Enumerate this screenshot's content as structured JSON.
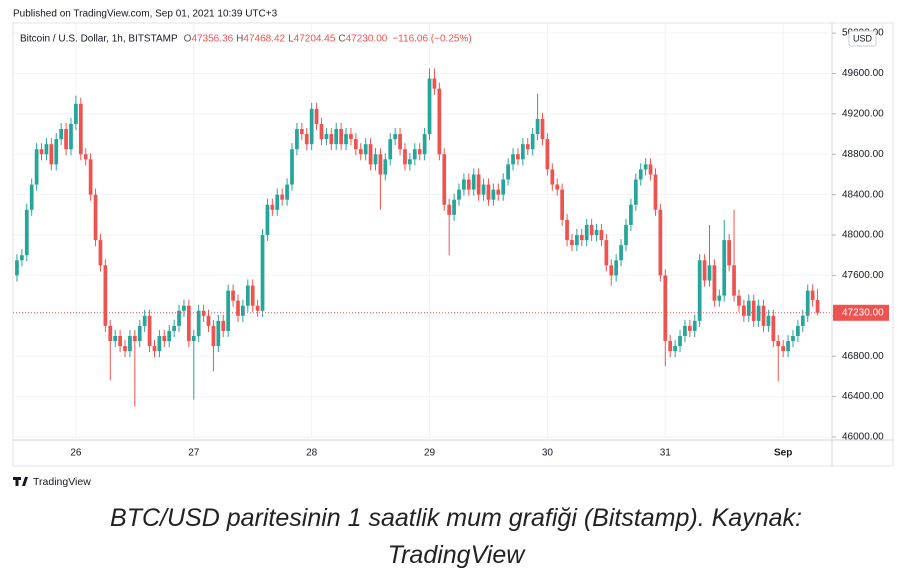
{
  "chart_data": {
    "type": "candlestick",
    "published": "Published on TradingView.com, Sep 01, 2021 10:39 UTC+3",
    "symbol": "Bitcoin / U.S. Dollar, 1h, BITSTAMP",
    "ohlc": [
      {
        "key": "O",
        "value": "47356.36"
      },
      {
        "key": "H",
        "value": "47468.42"
      },
      {
        "key": "L",
        "value": "47204.45"
      },
      {
        "key": "C",
        "value": "47230.00"
      }
    ],
    "change": "−116.06 (−0.25%)",
    "currency": "USD",
    "brand": "TradingView",
    "caption": "BTC/USD paritesinin 1 saatlik mum grafiği (Bitstamp). Kaynak: TradingView",
    "up_color": "#26a69a",
    "down_color": "#ef5350",
    "grid": true,
    "last_price": {
      "value": 47230,
      "label": "47230.00"
    },
    "ylim": [
      45970,
      50100
    ],
    "yticks": [
      {
        "value": 46000,
        "label": "46000.00"
      },
      {
        "value": 46400,
        "label": "46400.00"
      },
      {
        "value": 46800,
        "label": "46800.00"
      },
      {
        "value": 47200,
        "label": "47200.00"
      },
      {
        "value": 47600,
        "label": "47600.00"
      },
      {
        "value": 48000,
        "label": "48000.00"
      },
      {
        "value": 48400,
        "label": "48400.00"
      },
      {
        "value": 48800,
        "label": "48800.00"
      },
      {
        "value": 49200,
        "label": "49200.00"
      },
      {
        "value": 49600,
        "label": "49600.00"
      },
      {
        "value": 50000,
        "label": "50000.00"
      }
    ],
    "categories": [
      null,
      null,
      null,
      null,
      null,
      null,
      null,
      null,
      null,
      null,
      null,
      null,
      "26",
      null,
      null,
      null,
      null,
      null,
      null,
      null,
      null,
      null,
      null,
      null,
      null,
      null,
      null,
      null,
      null,
      null,
      null,
      null,
      null,
      null,
      null,
      null,
      "27",
      null,
      null,
      null,
      null,
      null,
      null,
      null,
      null,
      null,
      null,
      null,
      null,
      null,
      null,
      null,
      null,
      null,
      null,
      null,
      null,
      null,
      null,
      null,
      "28",
      null,
      null,
      null,
      null,
      null,
      null,
      null,
      null,
      null,
      null,
      null,
      null,
      null,
      null,
      null,
      null,
      null,
      null,
      null,
      null,
      null,
      null,
      null,
      "29",
      null,
      null,
      null,
      null,
      null,
      null,
      null,
      null,
      null,
      null,
      null,
      null,
      null,
      null,
      null,
      null,
      null,
      null,
      null,
      null,
      null,
      null,
      null,
      "30",
      null,
      null,
      null,
      null,
      null,
      null,
      null,
      null,
      null,
      null,
      null,
      null,
      null,
      null,
      null,
      null,
      null,
      null,
      null,
      null,
      null,
      null,
      null,
      "31",
      null,
      null,
      null,
      null,
      null,
      null,
      null,
      null,
      null,
      null,
      null,
      null,
      null,
      null,
      null,
      null,
      null,
      null,
      null,
      null,
      null,
      null,
      null,
      "Sep",
      null,
      null,
      null,
      null,
      null,
      null,
      null
    ],
    "open": [
      47600,
      47750,
      47800,
      48250,
      48500,
      48850,
      48800,
      48900,
      48700,
      48950,
      49050,
      48850,
      49100,
      49300,
      48800,
      48750,
      48400,
      47950,
      47700,
      47100,
      46950,
      47000,
      46900,
      46850,
      47000,
      46950,
      47100,
      47200,
      46900,
      46850,
      47000,
      46950,
      47050,
      47100,
      47250,
      47300,
      46950,
      47000,
      47250,
      47200,
      47100,
      46900,
      47150,
      47050,
      47450,
      47350,
      47200,
      47300,
      47500,
      47300,
      47250,
      48000,
      48300,
      48250,
      48400,
      48350,
      48500,
      48850,
      49050,
      49000,
      48900,
      49250,
      49100,
      48950,
      49000,
      48900,
      49050,
      48900,
      49000,
      48950,
      48850,
      48800,
      48900,
      48700,
      48800,
      48600,
      48750,
      48950,
      49000,
      48850,
      48700,
      48750,
      48850,
      48800,
      49000,
      49550,
      49450,
      48800,
      48300,
      48200,
      48350,
      48450,
      48550,
      48450,
      48600,
      48400,
      48500,
      48350,
      48450,
      48400,
      48550,
      48700,
      48800,
      48750,
      48900,
      48850,
      49000,
      49150,
      48950,
      48650,
      48500,
      48450,
      48150,
      47950,
      47900,
      48000,
      47950,
      48100,
      48000,
      48050,
      47950,
      47700,
      47600,
      47750,
      47900,
      48100,
      48300,
      48550,
      48650,
      48700,
      48600,
      48250,
      47600,
      46950,
      46850,
      46900,
      47000,
      47100,
      47050,
      47150,
      47750,
      47550,
      47700,
      47350,
      47400,
      47950,
      47700,
      47400,
      47300,
      47200,
      47350,
      47150,
      47300,
      47100,
      47200,
      46950,
      46900,
      46850,
      46950,
      47000,
      47100,
      47200,
      47450,
      47356.36
    ],
    "high": [
      47810,
      47860,
      48310,
      48560,
      48910,
      48910,
      48960,
      48960,
      49010,
      49110,
      49110,
      49160,
      49380,
      49360,
      48860,
      48810,
      48460,
      48010,
      47760,
      47160,
      47060,
      47060,
      46960,
      47060,
      47060,
      47160,
      47260,
      47260,
      46960,
      47060,
      47060,
      47110,
      47160,
      47310,
      47360,
      47360,
      47060,
      47310,
      47310,
      47260,
      47160,
      47210,
      47210,
      47510,
      47510,
      47410,
      47360,
      47560,
      47560,
      47360,
      48060,
      48360,
      48360,
      48460,
      48460,
      48560,
      48910,
      49110,
      49110,
      49060,
      49310,
      49310,
      49160,
      49060,
      49060,
      49110,
      49110,
      49060,
      49060,
      49010,
      48910,
      48960,
      48960,
      48860,
      48860,
      48810,
      49010,
      49060,
      49060,
      48910,
      48810,
      48910,
      48910,
      49060,
      49650,
      49650,
      49510,
      48860,
      48360,
      48410,
      48510,
      48610,
      48610,
      48660,
      48660,
      48560,
      48560,
      48510,
      48510,
      48610,
      48760,
      48860,
      48860,
      48960,
      48960,
      49060,
      49400,
      49210,
      49010,
      48710,
      48560,
      48510,
      48210,
      48010,
      48060,
      48060,
      48160,
      48160,
      48110,
      48110,
      48010,
      47760,
      47810,
      47960,
      48160,
      48360,
      48610,
      48710,
      48760,
      48760,
      48660,
      48310,
      47660,
      47010,
      46960,
      47060,
      47160,
      47160,
      47210,
      47810,
      47810,
      48100,
      47760,
      47460,
      48150,
      48010,
      48250,
      47460,
      47360,
      47410,
      47410,
      47360,
      47360,
      47260,
      47260,
      47010,
      46960,
      47010,
      47060,
      47160,
      47260,
      47510,
      47510,
      47468.42
    ],
    "low": [
      47540,
      47690,
      47740,
      48190,
      48440,
      48740,
      48740,
      48640,
      48640,
      48890,
      48790,
      48790,
      49040,
      48740,
      48690,
      48340,
      47890,
      47640,
      47040,
      46560,
      46890,
      46840,
      46790,
      46790,
      46300,
      46890,
      47040,
      46840,
      46790,
      46790,
      46890,
      46890,
      46990,
      47040,
      47190,
      46890,
      46370,
      46940,
      47140,
      47040,
      46650,
      46840,
      46990,
      46990,
      47290,
      47140,
      47140,
      47240,
      47240,
      47190,
      47190,
      47940,
      48190,
      48190,
      48290,
      48290,
      48440,
      48790,
      48940,
      48840,
      48840,
      49040,
      48890,
      48890,
      48840,
      48840,
      48840,
      48840,
      48890,
      48790,
      48740,
      48740,
      48640,
      48640,
      48250,
      48540,
      48690,
      48890,
      48790,
      48640,
      48640,
      48690,
      48740,
      48740,
      48940,
      49390,
      48740,
      48240,
      47800,
      48140,
      48290,
      48390,
      48390,
      48390,
      48340,
      48340,
      48290,
      48290,
      48340,
      48340,
      48490,
      48640,
      48690,
      48690,
      48790,
      48790,
      48940,
      48890,
      48590,
      48440,
      48390,
      48090,
      47890,
      47840,
      47840,
      47890,
      47890,
      47940,
      47940,
      47890,
      47640,
      47500,
      47540,
      47690,
      47840,
      48040,
      48240,
      48490,
      48590,
      48540,
      48190,
      47540,
      46700,
      46790,
      46790,
      46840,
      46940,
      46990,
      46990,
      47090,
      47490,
      47490,
      47290,
      47290,
      47340,
      47640,
      47340,
      47240,
      47140,
      47140,
      47090,
      47090,
      47040,
      47040,
      46890,
      46550,
      46790,
      46790,
      46890,
      46940,
      47040,
      47140,
      47290,
      47204.45
    ],
    "close": [
      47750,
      47800,
      48250,
      48500,
      48850,
      48800,
      48900,
      48700,
      48950,
      49050,
      48850,
      49100,
      49300,
      48800,
      48750,
      48400,
      47950,
      47700,
      47100,
      46950,
      47000,
      46900,
      46850,
      47000,
      46950,
      47100,
      47200,
      46900,
      46850,
      47000,
      46950,
      47050,
      47100,
      47250,
      47300,
      46950,
      47000,
      47250,
      47200,
      47100,
      46900,
      47150,
      47050,
      47450,
      47350,
      47200,
      47300,
      47500,
      47300,
      47250,
      48000,
      48300,
      48250,
      48400,
      48350,
      48500,
      48850,
      49050,
      49000,
      48900,
      49250,
      49100,
      48950,
      49000,
      48900,
      49050,
      48900,
      49000,
      48950,
      48850,
      48800,
      48900,
      48700,
      48800,
      48600,
      48750,
      48950,
      49000,
      48850,
      48700,
      48750,
      48850,
      48800,
      49000,
      49550,
      49450,
      48800,
      48300,
      48200,
      48350,
      48450,
      48550,
      48450,
      48600,
      48400,
      48500,
      48350,
      48450,
      48400,
      48550,
      48700,
      48800,
      48750,
      48900,
      48850,
      49000,
      49150,
      48950,
      48650,
      48500,
      48450,
      48150,
      47950,
      47900,
      48000,
      47950,
      48100,
      48000,
      48050,
      47950,
      47700,
      47600,
      47750,
      47900,
      48100,
      48300,
      48550,
      48650,
      48700,
      48600,
      48250,
      47600,
      46950,
      46850,
      46900,
      47000,
      47100,
      47050,
      47150,
      47750,
      47550,
      47700,
      47350,
      47400,
      47950,
      47700,
      47400,
      47300,
      47200,
      47350,
      47150,
      47300,
      47100,
      47200,
      46950,
      46900,
      46850,
      46950,
      47000,
      47100,
      47200,
      47450,
      47356.36,
      47230
    ]
  }
}
